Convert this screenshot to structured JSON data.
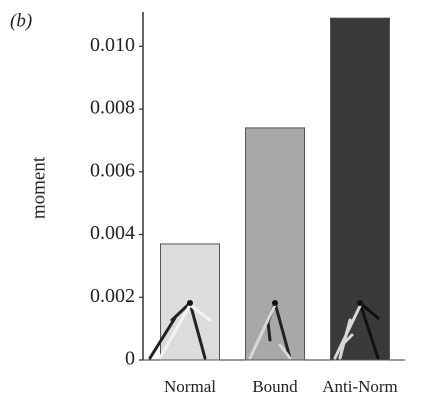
{
  "chart_data": {
    "type": "bar",
    "annotation": "(b)",
    "y_label": "moment",
    "categories": [
      "Normal",
      "Bound",
      "Anti-Norm"
    ],
    "values": [
      0.0037,
      0.0074,
      0.0109
    ],
    "colors": [
      "#dcdcdc",
      "#a8a8a8",
      "#3a3a3a"
    ],
    "ylim": [
      0,
      0.011
    ],
    "yticks": [
      0,
      0.002,
      0.004,
      0.006,
      0.008,
      {
        "value": 0.01,
        "label": "0.010"
      }
    ],
    "grid": false
  }
}
